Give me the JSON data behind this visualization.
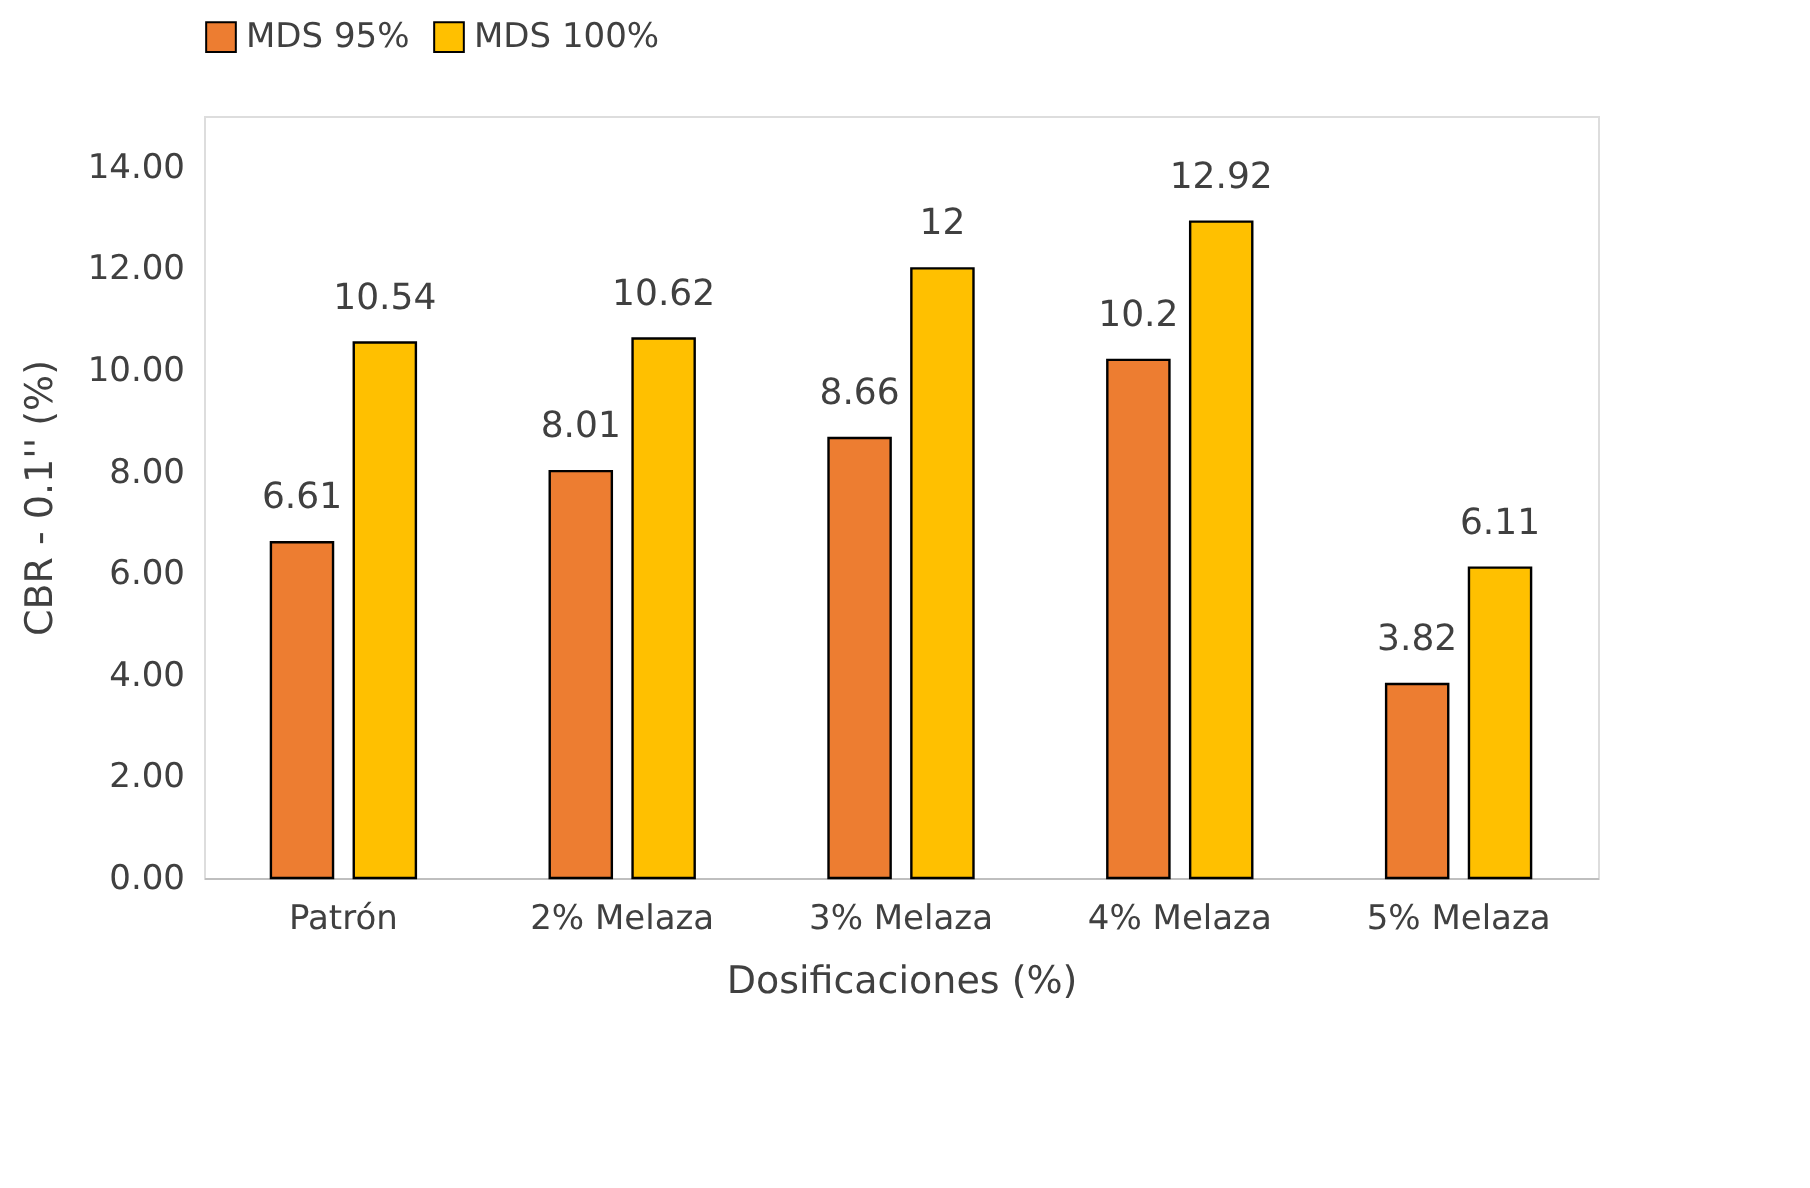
{
  "chart_data": {
    "type": "bar",
    "xlabel": "Dosificaciones (%)",
    "ylabel": "CBR - 0.1'' (%)",
    "categories": [
      "Patrón",
      "2% Melaza",
      "3% Melaza",
      "4% Melaza",
      "5% Melaza"
    ],
    "series": [
      {
        "name": "MDS 95%",
        "color": "#ed7d31",
        "values": [
          6.61,
          8.01,
          8.66,
          10.2,
          3.82
        ]
      },
      {
        "name": "MDS 100%",
        "color": "#ffc000",
        "values": [
          10.54,
          10.62,
          12,
          12.92,
          6.11
        ]
      }
    ],
    "ylim": [
      0,
      15
    ],
    "yticks": [
      {
        "value": 0,
        "label": "0.00"
      },
      {
        "value": 2,
        "label": "2.00"
      },
      {
        "value": 4,
        "label": "4.00"
      },
      {
        "value": 6,
        "label": "6.00"
      },
      {
        "value": 8,
        "label": "8.00"
      },
      {
        "value": 10,
        "label": "10.00"
      },
      {
        "value": 12,
        "label": "12.00"
      },
      {
        "value": 14,
        "label": "14.00"
      }
    ],
    "data_labels": true,
    "legend": "top",
    "grid": false
  }
}
